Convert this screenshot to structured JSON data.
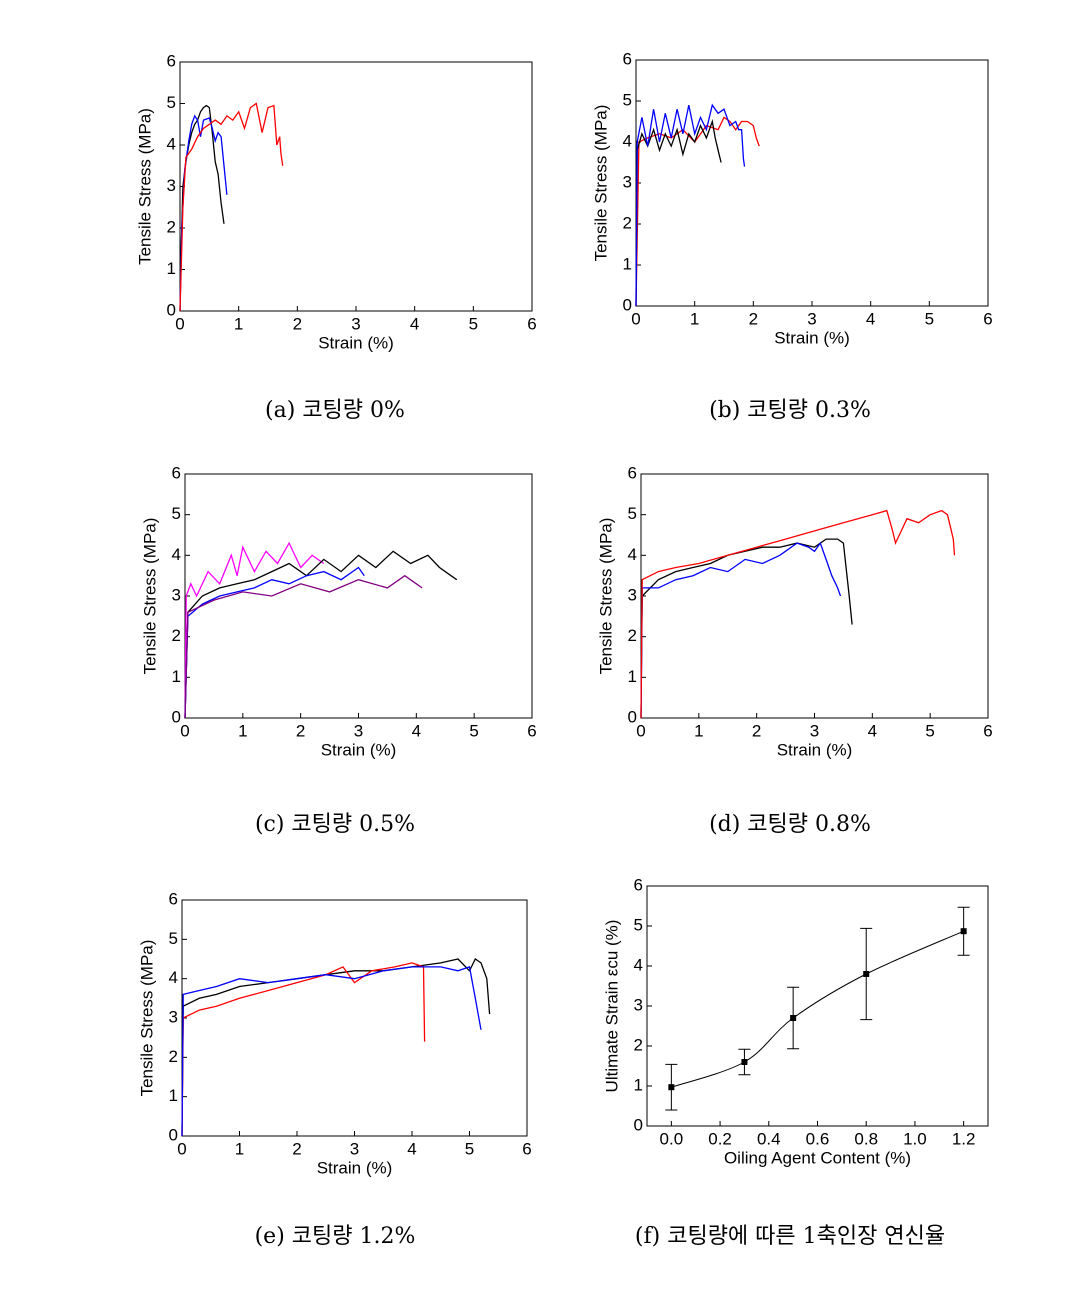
{
  "chart_data": [
    {
      "type": "line",
      "caption": "(a) 코팅량 0%",
      "xlabel": "Strain (%)",
      "ylabel": "Tensile Stress (MPa)",
      "xlim": [
        0,
        6
      ],
      "ylim": [
        0,
        6
      ],
      "xticks": [
        0,
        1,
        2,
        3,
        4,
        5,
        6
      ],
      "yticks": [
        0,
        1,
        2,
        3,
        4,
        5,
        6
      ],
      "series": [
        {
          "color": "#000000",
          "x": [
            0,
            0.02,
            0.05,
            0.1,
            0.15,
            0.2,
            0.25,
            0.3,
            0.35,
            0.4,
            0.45,
            0.5,
            0.55,
            0.6,
            0.65,
            0.7,
            0.75
          ],
          "values": [
            0,
            1.5,
            3,
            3.6,
            4.0,
            4.3,
            4.5,
            4.6,
            4.8,
            4.9,
            4.95,
            4.9,
            4.3,
            3.6,
            3.3,
            2.6,
            2.1
          ]
        },
        {
          "color": "#0000ff",
          "x": [
            0,
            0.03,
            0.08,
            0.15,
            0.2,
            0.25,
            0.3,
            0.35,
            0.4,
            0.5,
            0.55,
            0.6,
            0.65,
            0.7,
            0.75,
            0.8
          ],
          "values": [
            0,
            2,
            3.4,
            4.1,
            4.5,
            4.7,
            4.6,
            4.2,
            4.6,
            4.65,
            4.4,
            4.1,
            4.3,
            4.2,
            3.5,
            2.8
          ]
        },
        {
          "color": "#ff0000",
          "x": [
            0,
            0.05,
            0.1,
            0.2,
            0.3,
            0.4,
            0.5,
            0.6,
            0.7,
            0.8,
            0.9,
            1.0,
            1.1,
            1.2,
            1.3,
            1.4,
            1.5,
            1.6,
            1.65,
            1.7,
            1.72,
            1.75
          ],
          "values": [
            0,
            2.5,
            3.7,
            3.9,
            4.2,
            4.4,
            4.5,
            4.6,
            4.5,
            4.7,
            4.6,
            4.8,
            4.4,
            4.9,
            5.0,
            4.3,
            4.9,
            4.95,
            4.0,
            4.2,
            3.8,
            3.5
          ]
        }
      ]
    },
    {
      "type": "line",
      "caption": "(b) 코팅량 0.3%",
      "xlabel": "Strain (%)",
      "ylabel": "Tensile Stress (MPa)",
      "xlim": [
        0,
        6
      ],
      "ylim": [
        0,
        6
      ],
      "xticks": [
        0,
        1,
        2,
        3,
        4,
        5,
        6
      ],
      "yticks": [
        0,
        1,
        2,
        3,
        4,
        5,
        6
      ],
      "series": [
        {
          "color": "#ff0000",
          "x": [
            0,
            0.05,
            0.2,
            0.4,
            0.6,
            0.8,
            1.0,
            1.2,
            1.4,
            1.5,
            1.6,
            1.7,
            1.8,
            1.9,
            2.0,
            2.05,
            2.1
          ],
          "values": [
            0,
            4.0,
            4.1,
            4.2,
            4.1,
            4.3,
            4.0,
            4.4,
            4.3,
            4.6,
            4.5,
            4.3,
            4.5,
            4.5,
            4.4,
            4.1,
            3.9
          ]
        },
        {
          "color": "#000000",
          "x": [
            0,
            0.02,
            0.1,
            0.2,
            0.3,
            0.4,
            0.5,
            0.6,
            0.7,
            0.8,
            0.9,
            1.0,
            1.1,
            1.2,
            1.3,
            1.35,
            1.4,
            1.45
          ],
          "values": [
            0,
            3.8,
            4.2,
            3.9,
            4.3,
            3.8,
            4.2,
            3.9,
            4.3,
            3.7,
            4.2,
            4.0,
            4.4,
            4.1,
            4.5,
            4.1,
            3.8,
            3.5
          ]
        },
        {
          "color": "#0000ff",
          "x": [
            0,
            0.02,
            0.1,
            0.2,
            0.3,
            0.4,
            0.5,
            0.6,
            0.7,
            0.8,
            0.9,
            1.0,
            1.1,
            1.2,
            1.3,
            1.4,
            1.5,
            1.6,
            1.7,
            1.75,
            1.8,
            1.83,
            1.85
          ],
          "values": [
            0,
            4.0,
            4.6,
            3.9,
            4.8,
            4.0,
            4.7,
            4.1,
            4.8,
            4.2,
            4.9,
            4.2,
            4.6,
            4.3,
            4.9,
            4.7,
            4.8,
            4.4,
            4.5,
            4.3,
            4.3,
            3.6,
            3.4
          ]
        }
      ]
    },
    {
      "type": "line",
      "caption": "(c) 코팅량 0.5%",
      "xlabel": "Strain (%)",
      "ylabel": "Tensile Stress (MPa)",
      "xlim": [
        0,
        6
      ],
      "ylim": [
        0,
        6
      ],
      "xticks": [
        0,
        1,
        2,
        3,
        4,
        5,
        6
      ],
      "yticks": [
        0,
        1,
        2,
        3,
        4,
        5,
        6
      ],
      "series": [
        {
          "color": "#ff00ff",
          "x": [
            0,
            0.02,
            0.1,
            0.2,
            0.4,
            0.6,
            0.8,
            0.9,
            1.0,
            1.2,
            1.4,
            1.6,
            1.8,
            2.0,
            2.2,
            2.4
          ],
          "values": [
            0,
            3.0,
            3.3,
            3.0,
            3.6,
            3.3,
            4.0,
            3.5,
            4.2,
            3.6,
            4.1,
            3.8,
            4.3,
            3.7,
            4.0,
            3.8
          ]
        },
        {
          "color": "#000000",
          "x": [
            0,
            0.05,
            0.3,
            0.6,
            0.9,
            1.2,
            1.5,
            1.8,
            2.1,
            2.4,
            2.7,
            3.0,
            3.3,
            3.6,
            3.9,
            4.2,
            4.4,
            4.6,
            4.7
          ],
          "values": [
            0,
            2.6,
            3.0,
            3.2,
            3.3,
            3.4,
            3.6,
            3.8,
            3.5,
            3.9,
            3.6,
            4.0,
            3.7,
            4.1,
            3.8,
            4.0,
            3.7,
            3.5,
            3.4
          ]
        },
        {
          "color": "#0000ff",
          "x": [
            0,
            0.05,
            0.3,
            0.6,
            0.9,
            1.2,
            1.5,
            1.8,
            2.1,
            2.4,
            2.7,
            3.0,
            3.1
          ],
          "values": [
            0,
            2.5,
            2.8,
            3.0,
            3.1,
            3.2,
            3.4,
            3.3,
            3.5,
            3.6,
            3.4,
            3.7,
            3.5
          ]
        },
        {
          "color": "#800080",
          "x": [
            0,
            0.05,
            0.5,
            1.0,
            1.5,
            2.0,
            2.5,
            3.0,
            3.5,
            3.8,
            4.0,
            4.1
          ],
          "values": [
            0,
            2.6,
            2.9,
            3.1,
            3.0,
            3.3,
            3.1,
            3.4,
            3.2,
            3.5,
            3.3,
            3.2
          ]
        }
      ]
    },
    {
      "type": "line",
      "caption": "(d) 코팅량 0.8%",
      "xlabel": "Strain (%)",
      "ylabel": "Tensile Stress (MPa)",
      "xlim": [
        0,
        6
      ],
      "ylim": [
        0,
        6
      ],
      "xticks": [
        0,
        1,
        2,
        3,
        4,
        5,
        6
      ],
      "yticks": [
        0,
        1,
        2,
        3,
        4,
        5,
        6
      ],
      "series": [
        {
          "color": "#000000",
          "x": [
            0,
            0.02,
            0.3,
            0.6,
            0.9,
            1.2,
            1.5,
            1.8,
            2.1,
            2.4,
            2.7,
            3.0,
            3.2,
            3.4,
            3.5,
            3.6,
            3.65
          ],
          "values": [
            0,
            3.0,
            3.4,
            3.6,
            3.7,
            3.8,
            4.0,
            4.1,
            4.2,
            4.2,
            4.3,
            4.2,
            4.4,
            4.4,
            4.3,
            3.0,
            2.3
          ]
        },
        {
          "color": "#0000ff",
          "x": [
            0,
            0.02,
            0.3,
            0.6,
            0.9,
            1.2,
            1.5,
            1.8,
            2.1,
            2.4,
            2.7,
            2.9,
            3.0,
            3.1,
            3.2,
            3.3,
            3.4,
            3.45
          ],
          "values": [
            0,
            3.2,
            3.2,
            3.4,
            3.5,
            3.7,
            3.6,
            3.9,
            3.8,
            4.0,
            4.3,
            4.2,
            4.1,
            4.3,
            3.9,
            3.5,
            3.2,
            3.0
          ]
        },
        {
          "color": "#ff0000",
          "x": [
            0,
            0.02,
            0.3,
            0.6,
            1.0,
            1.5,
            2.0,
            2.5,
            3.0,
            3.5,
            4.0,
            4.25,
            4.35,
            4.4,
            4.6,
            4.8,
            5.0,
            5.2,
            5.3,
            5.4,
            5.42
          ],
          "values": [
            0,
            3.4,
            3.6,
            3.7,
            3.8,
            4.0,
            4.2,
            4.4,
            4.6,
            4.8,
            5.0,
            5.1,
            4.6,
            4.3,
            4.9,
            4.8,
            5.0,
            5.1,
            5.0,
            4.4,
            4.0
          ]
        }
      ]
    },
    {
      "type": "line",
      "caption": "(e) 코팅량 1.2%",
      "xlabel": "Strain (%)",
      "ylabel": "Tensile Stress (MPa)",
      "xlim": [
        0,
        6
      ],
      "ylim": [
        0,
        6
      ],
      "xticks": [
        0,
        1,
        2,
        3,
        4,
        5,
        6
      ],
      "yticks": [
        0,
        1,
        2,
        3,
        4,
        5,
        6
      ],
      "series": [
        {
          "color": "#000000",
          "x": [
            0,
            0.02,
            0.3,
            0.6,
            1.0,
            1.5,
            2.0,
            2.5,
            3.0,
            3.5,
            4.0,
            4.5,
            4.8,
            5.0,
            5.1,
            5.2,
            5.3,
            5.35
          ],
          "values": [
            0,
            3.3,
            3.5,
            3.6,
            3.8,
            3.9,
            4.0,
            4.1,
            4.2,
            4.2,
            4.3,
            4.4,
            4.5,
            4.2,
            4.5,
            4.4,
            4.0,
            3.1
          ]
        },
        {
          "color": "#ff0000",
          "x": [
            0,
            0.02,
            0.3,
            0.6,
            1.0,
            1.5,
            2.0,
            2.5,
            2.8,
            3.0,
            3.3,
            3.7,
            4.0,
            4.2,
            4.22
          ],
          "values": [
            0,
            3.0,
            3.2,
            3.3,
            3.5,
            3.7,
            3.9,
            4.1,
            4.3,
            3.9,
            4.2,
            4.3,
            4.4,
            4.3,
            2.4
          ]
        },
        {
          "color": "#0000ff",
          "x": [
            0,
            0.02,
            0.3,
            0.6,
            1.0,
            1.5,
            2.0,
            2.5,
            3.0,
            3.5,
            4.0,
            4.5,
            4.8,
            5.0,
            5.1,
            5.2
          ],
          "values": [
            0,
            3.6,
            3.7,
            3.8,
            4.0,
            3.9,
            4.0,
            4.1,
            4.0,
            4.2,
            4.3,
            4.3,
            4.2,
            4.3,
            3.5,
            2.7
          ]
        }
      ]
    },
    {
      "type": "errorbar",
      "caption": "(f) 코팅량에 따른 1축인장 연신율",
      "xlabel": "Oiling Agent Content (%)",
      "ylabel": "Ultimate Strain εcu (%)",
      "xlim": [
        -0.1,
        1.3
      ],
      "ylim": [
        0,
        6
      ],
      "xticks": [
        {
          "value": 0,
          "label": "0.0"
        },
        0.2,
        0.4,
        0.6,
        0.8,
        {
          "value": 1,
          "label": "1.0"
        },
        1.2
      ],
      "yticks": [
        0,
        1,
        2,
        3,
        4,
        5,
        6
      ],
      "color": "#000000",
      "x": [
        0,
        0.3,
        0.5,
        0.8,
        1.2
      ],
      "values": [
        0.97,
        1.6,
        2.7,
        3.8,
        4.87
      ],
      "errors": [
        0.57,
        0.32,
        0.77,
        1.14,
        0.6
      ]
    }
  ]
}
